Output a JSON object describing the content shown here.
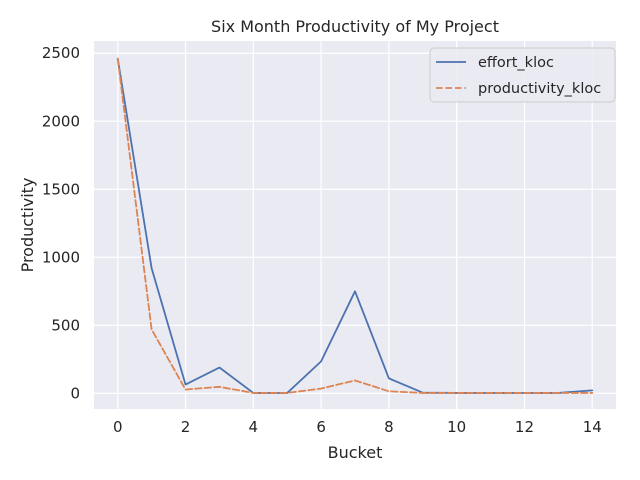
{
  "chart_data": {
    "type": "line",
    "title": "Six Month Productivity of My Project",
    "xlabel": "Bucket",
    "ylabel": "Productivity",
    "x": [
      0,
      1,
      2,
      3,
      4,
      5,
      6,
      7,
      8,
      9,
      10,
      11,
      12,
      13,
      14
    ],
    "xlim": [
      -0.7,
      14.7
    ],
    "ylim": [
      -115,
      2590
    ],
    "xticks": [
      0,
      2,
      4,
      6,
      8,
      10,
      12,
      14
    ],
    "yticks": [
      0,
      500,
      1000,
      1500,
      2000,
      2500
    ],
    "grid": true,
    "legend_position": "top-right",
    "series": [
      {
        "name": "effort_kloc",
        "color": "#4c72b0",
        "dash": "solid",
        "values": [
          2460,
          920,
          65,
          190,
          3,
          3,
          235,
          750,
          110,
          5,
          3,
          3,
          3,
          3,
          22
        ]
      },
      {
        "name": "productivity_kloc",
        "color": "#dd8452",
        "dash": "dashed",
        "values": [
          2460,
          470,
          28,
          48,
          3,
          3,
          35,
          95,
          15,
          3,
          3,
          3,
          3,
          3,
          3
        ]
      }
    ]
  }
}
